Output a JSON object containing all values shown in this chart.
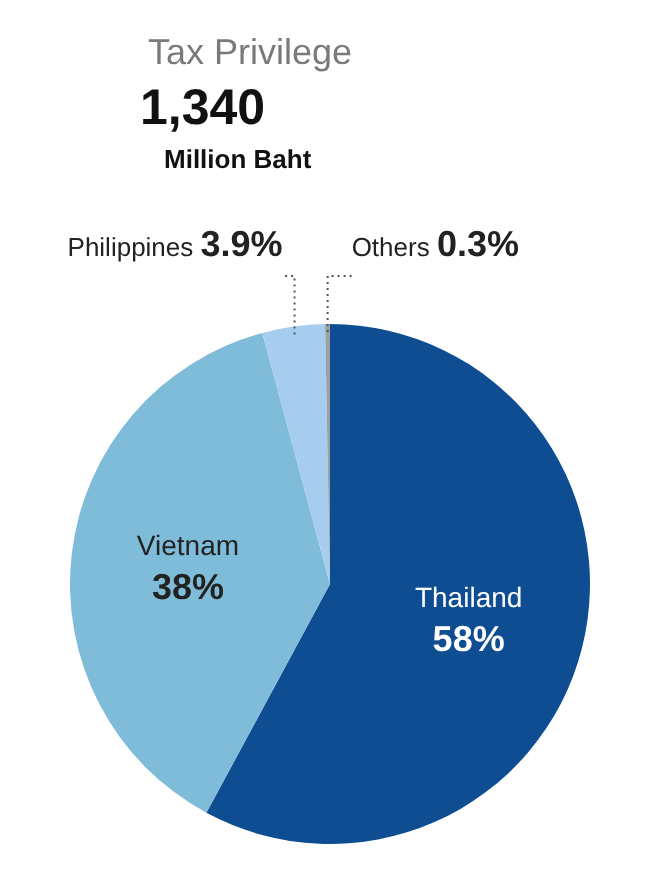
{
  "chart_data": {
    "type": "pie",
    "title": "Tax Privilege",
    "subtitle": "1,340",
    "annotations": [
      "Million Baht"
    ],
    "categories": [
      "Thailand",
      "Vietnam",
      "Philippines",
      "Others"
    ],
    "values": [
      58,
      38,
      3.9,
      0.3
    ],
    "colors": [
      "#0e4d92",
      "#7fbcd9",
      "#a7cdee",
      "#9aa0a6"
    ],
    "value_labels": [
      "58%",
      "38%",
      "3.9%",
      "0.3%"
    ],
    "legend": false
  }
}
